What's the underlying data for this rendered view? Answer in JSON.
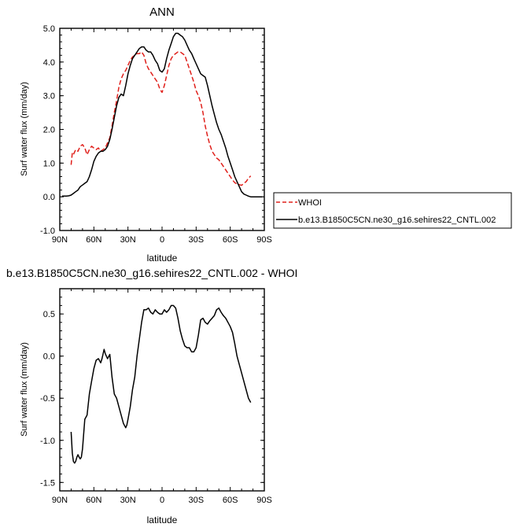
{
  "chart_data": [
    {
      "type": "line",
      "title": "ANN",
      "xlabel": "latitude",
      "ylabel": "Surf water flux (mm/day)",
      "xlim": [
        90,
        -90
      ],
      "ylim": [
        -1.0,
        5.0
      ],
      "x_ticks": [
        90,
        60,
        30,
        0,
        -30,
        -60,
        -90
      ],
      "x_tick_labels": [
        "90N",
        "60N",
        "30N",
        "0",
        "30S",
        "60S",
        "90S"
      ],
      "y_ticks": [
        -1,
        0,
        1,
        2,
        3,
        4,
        5
      ],
      "y_tick_labels": [
        "-1.0",
        "0.0",
        "1.0",
        "2.0",
        "3.0",
        "4.0",
        "5.0"
      ],
      "legend": [
        "WHOI",
        "b.e13.B1850C5CN.ne30_g16.sehires22_CNTL.002"
      ],
      "legend_position": "right",
      "series": [
        {
          "name": "WHOI",
          "color": "#e0201b",
          "dash": true,
          "x": [
            80,
            79,
            78,
            76,
            74,
            72,
            70,
            68,
            66,
            64,
            62,
            60,
            58,
            56,
            54,
            52,
            50,
            48,
            46,
            44,
            42,
            40,
            38,
            36,
            34,
            32,
            30,
            28,
            26,
            24,
            22,
            20,
            18,
            16,
            14,
            12,
            10,
            8,
            6,
            4,
            2,
            0,
            -2,
            -4,
            -6,
            -8,
            -10,
            -12,
            -14,
            -16,
            -18,
            -20,
            -22,
            -24,
            -26,
            -28,
            -30,
            -32,
            -34,
            -36,
            -38,
            -40,
            -42,
            -44,
            -46,
            -48,
            -50,
            -52,
            -54,
            -56,
            -58,
            -60,
            -62,
            -64,
            -66,
            -68,
            -70,
            -72,
            -74,
            -76,
            -78
          ],
          "values": [
            0.95,
            1.3,
            1.25,
            1.4,
            1.35,
            1.5,
            1.55,
            1.45,
            1.25,
            1.4,
            1.5,
            1.45,
            1.4,
            1.45,
            1.35,
            1.4,
            1.45,
            1.6,
            1.75,
            2.1,
            2.5,
            2.85,
            3.25,
            3.5,
            3.65,
            3.75,
            3.9,
            4.05,
            4.15,
            4.2,
            4.25,
            4.25,
            4.3,
            4.2,
            3.95,
            3.8,
            3.7,
            3.6,
            3.5,
            3.4,
            3.2,
            3.1,
            3.3,
            3.6,
            3.9,
            4.1,
            4.2,
            4.25,
            4.3,
            4.3,
            4.25,
            4.2,
            4.0,
            3.8,
            3.6,
            3.4,
            3.15,
            3.0,
            2.8,
            2.5,
            2.1,
            1.8,
            1.55,
            1.35,
            1.25,
            1.15,
            1.1,
            1.0,
            0.9,
            0.8,
            0.7,
            0.6,
            0.5,
            0.42,
            0.38,
            0.36,
            0.34,
            0.4,
            0.45,
            0.55,
            0.62
          ]
        },
        {
          "name": "b.e13.B1850C5CN.ne30_g16.sehires22_CNTL.002",
          "color": "#000000",
          "dash": false,
          "x": [
            88,
            86,
            84,
            82,
            80,
            78,
            76,
            74,
            72,
            70,
            68,
            66,
            64,
            62,
            60,
            58,
            56,
            54,
            52,
            50,
            48,
            46,
            44,
            42,
            40,
            38,
            36,
            34,
            32,
            30,
            28,
            26,
            24,
            22,
            20,
            18,
            16,
            14,
            12,
            10,
            8,
            6,
            4,
            2,
            0,
            -2,
            -4,
            -6,
            -8,
            -10,
            -12,
            -14,
            -16,
            -18,
            -20,
            -22,
            -24,
            -26,
            -28,
            -30,
            -32,
            -34,
            -36,
            -38,
            -40,
            -42,
            -44,
            -46,
            -48,
            -50,
            -52,
            -54,
            -56,
            -58,
            -60,
            -62,
            -64,
            -66,
            -68,
            -70,
            -72,
            -74,
            -76,
            -78,
            -80,
            -82,
            -84,
            -86,
            -88
          ],
          "values": [
            0.02,
            0.02,
            0.02,
            0.03,
            0.05,
            0.1,
            0.15,
            0.2,
            0.3,
            0.35,
            0.4,
            0.45,
            0.6,
            0.8,
            1.05,
            1.2,
            1.3,
            1.35,
            1.35,
            1.4,
            1.5,
            1.7,
            2.0,
            2.35,
            2.7,
            2.95,
            3.05,
            3.0,
            3.3,
            3.65,
            3.9,
            4.1,
            4.2,
            4.3,
            4.4,
            4.45,
            4.45,
            4.35,
            4.3,
            4.3,
            4.2,
            4.05,
            3.95,
            3.75,
            3.7,
            3.8,
            4.1,
            4.35,
            4.55,
            4.75,
            4.85,
            4.85,
            4.8,
            4.75,
            4.65,
            4.5,
            4.35,
            4.25,
            4.1,
            3.95,
            3.8,
            3.65,
            3.6,
            3.55,
            3.3,
            3.0,
            2.7,
            2.45,
            2.2,
            2.0,
            1.85,
            1.65,
            1.45,
            1.2,
            1.0,
            0.8,
            0.6,
            0.45,
            0.3,
            0.15,
            0.08,
            0.05,
            0.02,
            0.0,
            0.0,
            0.0,
            0.0,
            0.0,
            0.0
          ]
        }
      ]
    },
    {
      "type": "line",
      "title": "b.e13.B1850C5CN.ne30_g16.sehires22_CNTL.002 - WHOI",
      "xlabel": "latitude",
      "ylabel": "Surf water flux (mm/day)",
      "xlim": [
        90,
        -90
      ],
      "ylim": [
        -1.6,
        0.8
      ],
      "x_ticks": [
        90,
        60,
        30,
        0,
        -30,
        -60,
        -90
      ],
      "x_tick_labels": [
        "90N",
        "60N",
        "30N",
        "0",
        "30S",
        "60S",
        "90S"
      ],
      "y_ticks": [
        -1.5,
        -1.0,
        -0.5,
        0.0,
        0.5
      ],
      "y_tick_labels": [
        "-1.5",
        "-1.0",
        "-0.5",
        "0.0",
        "0.5"
      ],
      "series": [
        {
          "name": "b.e13.B1850C5CN.ne30_g16.sehires22_CNTL.002 - WHOI",
          "color": "#000000",
          "dash": false,
          "x": [
            80,
            79,
            78,
            77,
            76,
            75,
            74,
            73,
            72,
            71,
            70,
            68,
            66,
            64,
            62,
            60,
            58,
            56,
            54,
            53,
            52,
            51,
            50,
            49,
            48,
            46,
            44,
            42,
            40,
            38,
            36,
            34,
            32,
            31,
            30,
            28,
            26,
            24,
            22,
            20,
            18,
            16,
            14,
            12,
            10,
            8,
            6,
            4,
            2,
            0,
            -2,
            -4,
            -6,
            -8,
            -10,
            -12,
            -14,
            -16,
            -18,
            -20,
            -22,
            -24,
            -26,
            -28,
            -30,
            -32,
            -34,
            -36,
            -38,
            -40,
            -42,
            -44,
            -46,
            -48,
            -50,
            -52,
            -54,
            -56,
            -58,
            -60,
            -62,
            -64,
            -66,
            -68,
            -70,
            -72,
            -74,
            -76,
            -78
          ],
          "values": [
            -0.9,
            -1.15,
            -1.25,
            -1.27,
            -1.25,
            -1.2,
            -1.17,
            -1.2,
            -1.22,
            -1.2,
            -1.1,
            -0.75,
            -0.7,
            -0.45,
            -0.3,
            -0.15,
            -0.05,
            -0.03,
            -0.08,
            -0.04,
            0.02,
            0.08,
            0.03,
            0.0,
            -0.03,
            0.02,
            -0.25,
            -0.45,
            -0.5,
            -0.6,
            -0.7,
            -0.8,
            -0.85,
            -0.82,
            -0.75,
            -0.6,
            -0.4,
            -0.25,
            0.0,
            0.2,
            0.4,
            0.55,
            0.55,
            0.57,
            0.52,
            0.5,
            0.55,
            0.52,
            0.5,
            0.5,
            0.55,
            0.52,
            0.55,
            0.6,
            0.6,
            0.57,
            0.45,
            0.3,
            0.2,
            0.12,
            0.1,
            0.1,
            0.05,
            0.05,
            0.1,
            0.25,
            0.43,
            0.45,
            0.4,
            0.38,
            0.42,
            0.45,
            0.48,
            0.55,
            0.57,
            0.52,
            0.48,
            0.45,
            0.4,
            0.35,
            0.28,
            0.15,
            0.0,
            -0.1,
            -0.2,
            -0.3,
            -0.4,
            -0.5,
            -0.55
          ]
        }
      ]
    }
  ]
}
